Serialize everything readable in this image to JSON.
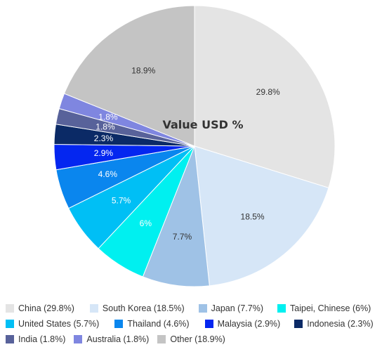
{
  "chart_data": {
    "type": "pie",
    "title": "Value USD %",
    "slices": [
      {
        "name": "China",
        "value": 29.8,
        "label": "29.8%",
        "legend": "China (29.8%)",
        "color": "#e4e4e4",
        "text_color": "#333333"
      },
      {
        "name": "South Korea",
        "value": 18.5,
        "label": "18.5%",
        "legend": "South Korea (18.5%)",
        "color": "#d6e6f7",
        "text_color": "#333333"
      },
      {
        "name": "Japan",
        "value": 7.7,
        "label": "7.7%",
        "legend": "Japan (7.7%)",
        "color": "#9fc2e6",
        "text_color": "#333333"
      },
      {
        "name": "Taipei, Chinese",
        "value": 6,
        "label": "6%",
        "legend": "Taipei, Chinese (6%)",
        "color": "#00f0f0",
        "text_color": "#ffffff"
      },
      {
        "name": "United States",
        "value": 5.7,
        "label": "5.7%",
        "legend": "United States (5.7%)",
        "color": "#00bff5",
        "text_color": "#ffffff"
      },
      {
        "name": "Thailand",
        "value": 4.6,
        "label": "4.6%",
        "legend": "Thailand (4.6%)",
        "color": "#0a86ee",
        "text_color": "#ffffff"
      },
      {
        "name": "Malaysia",
        "value": 2.9,
        "label": "2.9%",
        "legend": "Malaysia (2.9%)",
        "color": "#0426f0",
        "text_color": "#ffffff"
      },
      {
        "name": "Indonesia",
        "value": 2.3,
        "label": "2.3%",
        "legend": "Indonesia (2.3%)",
        "color": "#0b2a66",
        "text_color": "#ffffff"
      },
      {
        "name": "India",
        "value": 1.8,
        "label": "1.8%",
        "legend": "India (1.8%)",
        "color": "#58629a",
        "text_color": "#ffffff"
      },
      {
        "name": "Australia",
        "value": 1.8,
        "label": "1.8%",
        "legend": "Australia (1.8%)",
        "color": "#7f86e0",
        "text_color": "#ffffff"
      },
      {
        "name": "Other",
        "value": 18.9,
        "label": "18.9%",
        "legend": "Other (18.9%)",
        "color": "#c4c4c4",
        "text_color": "#333333"
      }
    ],
    "legend_position": "bottom"
  }
}
